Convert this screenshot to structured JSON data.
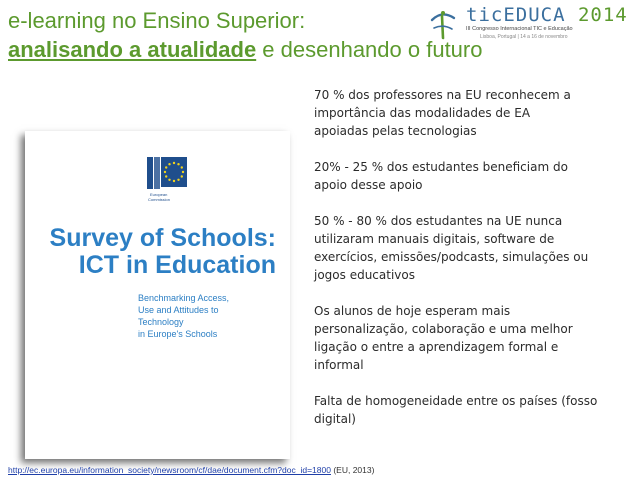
{
  "header": {
    "title_line1": "e-learning no Ensino Superior:",
    "title_line2_highlight": "analisando a atualidade",
    "title_line2_rest": " e desenhando o futuro"
  },
  "logo": {
    "name": "ticEDUCA",
    "year": "2014",
    "subtitle": "III Congresso Internacional TIC e Educação",
    "location": "Lisboa, Portugal  |  14 a 16 de novembro"
  },
  "cover": {
    "eu_caption_line1": "European",
    "eu_caption_line2": "Commission",
    "title_line1": "Survey of Schools:",
    "title_line2": "ICT in Education",
    "subtitle_lines": [
      "Benchmarking Access,",
      "Use and Attitudes to",
      "Technology",
      "in Europe's Schools"
    ]
  },
  "bullets": [
    [
      "70 %  dos  professores  na  EU reconhecem  a",
      "importância  das  modalidades  de EA",
      "apoiadas  pelas tecnologias"
    ],
    [
      "20% -  25 %  dos  estudantes  beneficiam  do",
      "apoio  desse apoio"
    ],
    [
      "50 % - 80 % dos estudantes na UE nunca",
      "utilizaram manuais  digitais,  software  de",
      "exercícios,  emissões/podcasts,  simulações  ou",
      "jogos educativos"
    ],
    [
      "Os alunos de hoje esperam mais",
      "personalização,  colaboração  e uma melhor",
      "ligação o entre a aprendizagem formal e",
      "informal"
    ],
    [
      "Falta de homogeneidade entre os países (fosso",
      "digital)"
    ]
  ],
  "footer": {
    "link": "http://ec.europa.eu/information_society/newsroom/cf/dae/document.cfm?doc_id=1800",
    "citation": " (EU, 2013)"
  },
  "colors": {
    "title_green": "#5c9a2e",
    "cover_blue": "#2c7fc4",
    "link_blue": "#1f3fa8"
  }
}
